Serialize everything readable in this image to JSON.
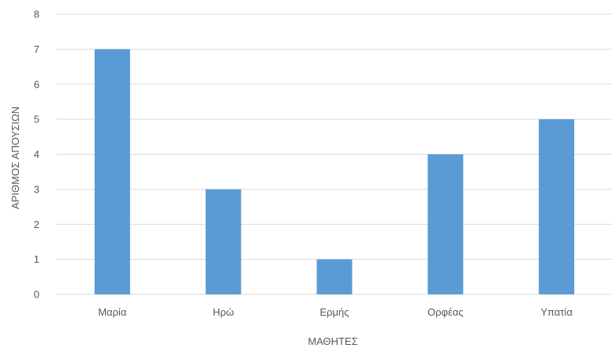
{
  "chart_data": {
    "type": "bar",
    "categories": [
      "Μαρία",
      "Ηρώ",
      "Ερμής",
      "Ορφέας",
      "Υπατία"
    ],
    "values": [
      7,
      3,
      1,
      4,
      5
    ],
    "title": "",
    "xlabel": "ΜΑΘΗΤΕΣ",
    "ylabel": "ΑΡΙΘΜΟΣ ΑΠΟΥΣΙΩΝ",
    "ylim": [
      0,
      8
    ],
    "yticks": [
      0,
      1,
      2,
      3,
      4,
      5,
      6,
      7,
      8
    ],
    "grid": true,
    "legend": "none",
    "colors": {
      "bar": "#5b9bd5",
      "grid": "#d9d9d9",
      "text": "#595959"
    }
  }
}
